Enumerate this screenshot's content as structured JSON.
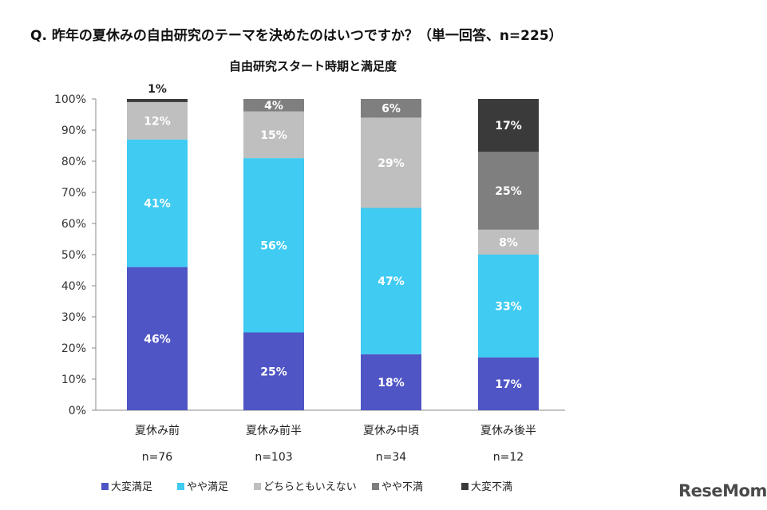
{
  "question": "Q. 昨年の夏休みの自由研究のテーマを決めたのはいつですか？（単一回答、n=225）",
  "logo": "ReseMom",
  "chart_data": {
    "type": "bar",
    "stacked": true,
    "title": "自由研究スタート時期と満足度",
    "categories": [
      "夏休み前",
      "夏休み前半",
      "夏休み中頃",
      "夏休み後半"
    ],
    "sample_sizes": [
      "n=76",
      "n=103",
      "n=34",
      "n=12"
    ],
    "ylim": [
      0,
      100
    ],
    "yticks": [
      "0%",
      "10%",
      "20%",
      "30%",
      "40%",
      "50%",
      "60%",
      "70%",
      "80%",
      "90%",
      "100%"
    ],
    "series": [
      {
        "name": "大変満足",
        "color": "#4f55c4",
        "values": [
          46,
          25,
          18,
          17
        ]
      },
      {
        "name": "やや満足",
        "color": "#3fcbf2",
        "values": [
          41,
          56,
          47,
          33
        ]
      },
      {
        "name": "どちらともいえない",
        "color": "#bfbfbf",
        "values": [
          12,
          15,
          29,
          8
        ]
      },
      {
        "name": "やや不満",
        "color": "#7f7f7f",
        "values": [
          0,
          4,
          6,
          25
        ]
      },
      {
        "name": "大変不満",
        "color": "#3a3a3a",
        "values": [
          1,
          0,
          0,
          17
        ]
      }
    ],
    "data_labels": [
      [
        "46%",
        "41%",
        "12%",
        null,
        "1%"
      ],
      [
        "25%",
        "56%",
        "15%",
        "4%",
        null
      ],
      [
        "18%",
        "47%",
        "29%",
        "6%",
        null
      ],
      [
        "17%",
        "33%",
        "8%",
        "25%",
        "17%"
      ]
    ],
    "legend_position": "bottom-left",
    "grid": false
  }
}
